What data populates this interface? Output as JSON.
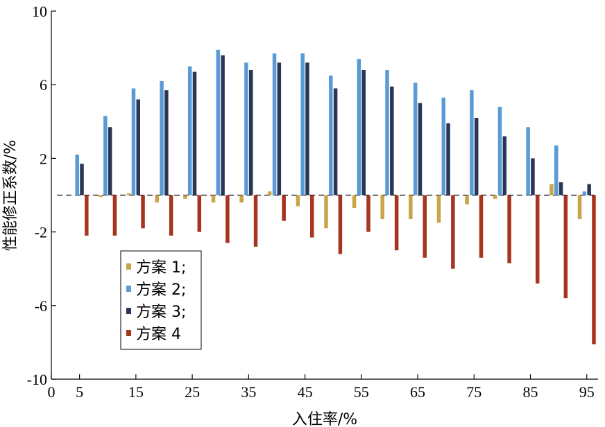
{
  "chart_data": {
    "type": "bar",
    "title": "",
    "xlabel": "入住率/%",
    "ylabel": "性能修正系数/%",
    "x_ticks": [
      "0",
      "5",
      "15",
      "25",
      "35",
      "45",
      "55",
      "65",
      "75",
      "85",
      "95"
    ],
    "y_ticks": [
      "-10",
      "-6",
      "-2",
      "2",
      "6",
      "10"
    ],
    "ylim": [
      -10,
      10
    ],
    "grid": false,
    "legend_position": "bottom-left",
    "categories": [
      5,
      10,
      15,
      20,
      25,
      30,
      35,
      40,
      45,
      50,
      55,
      60,
      65,
      70,
      75,
      80,
      85,
      90,
      95
    ],
    "series": [
      {
        "name": "方案 1;",
        "color": "#c9a448",
        "values": [
          0,
          -0.1,
          0.1,
          -0.4,
          -0.2,
          -0.4,
          -0.4,
          0.2,
          -0.6,
          -1.8,
          -0.7,
          -1.3,
          -1.3,
          -1.5,
          -0.5,
          -0.2,
          0,
          0.6,
          -1.3
        ]
      },
      {
        "name": "方案 2;",
        "color": "#5b9bd5",
        "values": [
          2.2,
          4.3,
          5.8,
          6.2,
          7.0,
          7.9,
          7.2,
          7.7,
          7.7,
          6.5,
          7.4,
          6.8,
          6.1,
          5.3,
          5.7,
          4.8,
          3.7,
          2.7,
          0.2
        ]
      },
      {
        "name": "方案 3;",
        "color": "#2a3655",
        "values": [
          1.7,
          3.7,
          5.2,
          5.7,
          6.7,
          7.6,
          6.8,
          7.2,
          7.2,
          5.8,
          6.8,
          5.9,
          5.0,
          3.9,
          4.2,
          3.2,
          2.0,
          0.7,
          0.6
        ]
      },
      {
        "name": "方案 4",
        "color": "#a83420",
        "values": [
          -2.2,
          -2.2,
          -1.8,
          -2.2,
          -2.0,
          -2.6,
          -2.8,
          -1.4,
          -2.3,
          -3.2,
          -2.0,
          -3.0,
          -3.4,
          -4.0,
          -3.4,
          -3.7,
          -4.8,
          -5.6,
          -8.1
        ]
      }
    ]
  }
}
